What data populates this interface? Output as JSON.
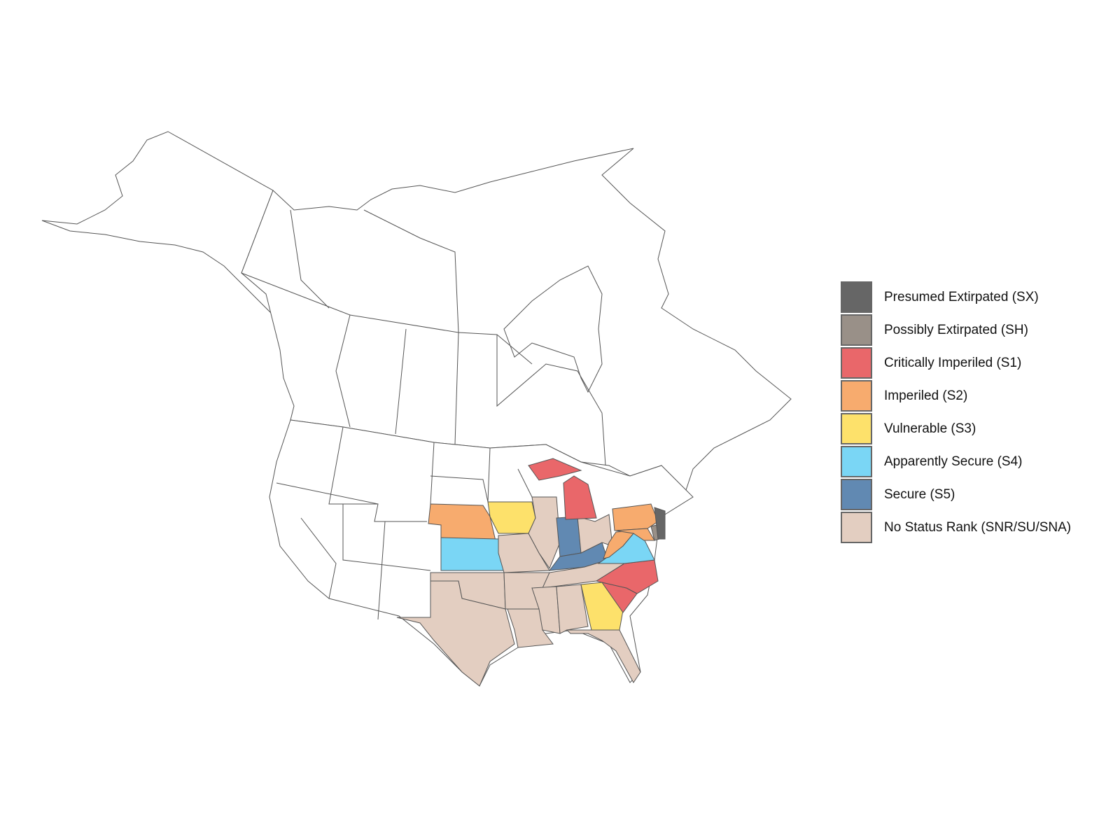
{
  "chart_data": {
    "type": "choropleth",
    "title": "",
    "legend": {
      "placement": "right",
      "items": [
        {
          "code": "SX",
          "label": "Presumed Extirpated (SX)",
          "color": "#666666"
        },
        {
          "code": "SH",
          "label": "Possibly Extirpated (SH)",
          "color": "#999088"
        },
        {
          "code": "S1",
          "label": "Critically Imperiled (S1)",
          "color": "#E9676A"
        },
        {
          "code": "S2",
          "label": "Imperiled (S2)",
          "color": "#F7AB6E"
        },
        {
          "code": "S3",
          "label": "Vulnerable (S3)",
          "color": "#FDE16B"
        },
        {
          "code": "S4",
          "label": "Apparently Secure (S4)",
          "color": "#7AD6F5"
        },
        {
          "code": "S5",
          "label": "Secure (S5)",
          "color": "#6189B2"
        },
        {
          "code": "SNR",
          "label": "No Status Rank (SNR/SU/SNA)",
          "color": "#E3CEC1"
        }
      ]
    },
    "regions": {
      "NE": "S2",
      "KS": "S4",
      "IA": "S3",
      "MO": "SNR",
      "OK": "SNR",
      "TX": "SNR",
      "AR": "SNR",
      "LA": "SNR",
      "IL": "SNR",
      "IN": "S5",
      "KY": "S5",
      "OH": "SNR",
      "MI": "S1",
      "TN": "SNR",
      "MS": "SNR",
      "AL": "SNR",
      "GA": "S3",
      "FL": "SNR",
      "SC": "S1",
      "NC": "S1",
      "VA": "S4",
      "WV": "S2",
      "PA": "S2",
      "MD": "S2",
      "DE": "SH",
      "NJ": "SX"
    },
    "unranked_fill": "#FFFFFF",
    "border_color": "#555555"
  }
}
